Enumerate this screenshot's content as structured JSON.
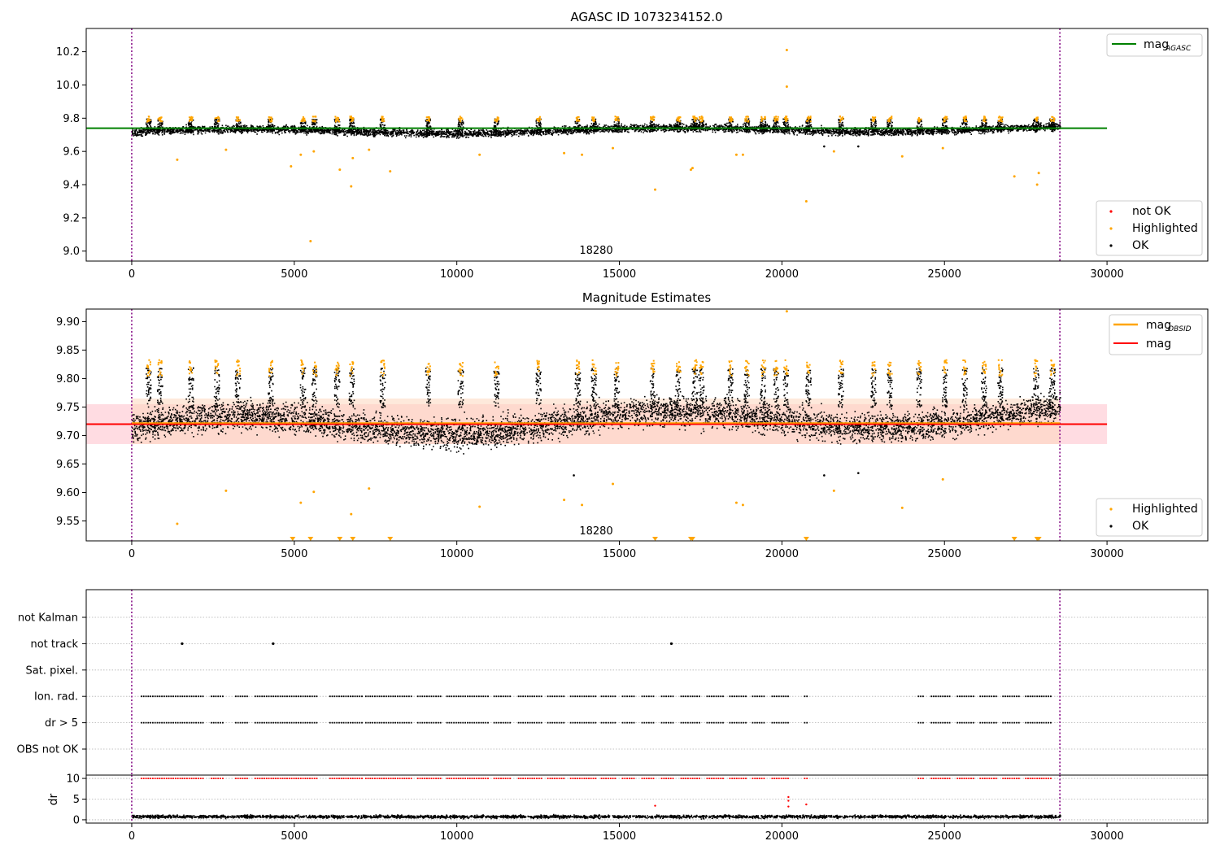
{
  "chart_data": [
    {
      "type": "scatter",
      "title": "AGASC ID 1073234152.0",
      "xlim": [
        -1400,
        33100
      ],
      "ylim": [
        8.94,
        10.34
      ],
      "x_ticks": [
        0,
        5000,
        10000,
        15000,
        20000,
        25000,
        30000
      ],
      "y_ticks": [
        9.0,
        9.2,
        9.4,
        9.6,
        9.8,
        10.0,
        10.2
      ],
      "grid": false,
      "vlines": [
        0,
        28550
      ],
      "annotation": {
        "text": "18280",
        "x": 14250,
        "y": 8.97
      },
      "lines": [
        {
          "name": "mag_AGASC",
          "color": "#008000",
          "y": 9.74,
          "x_range": [
            -1400,
            30000
          ]
        }
      ],
      "band": {
        "center": 9.72,
        "half_width": 0.04,
        "x_range": [
          0,
          28550
        ],
        "amplitude": 0.03
      },
      "clusters": {
        "color": "#ffa500",
        "positions": [
          500,
          850,
          1800,
          2600,
          3250,
          4250,
          5250,
          5600,
          6300,
          6750,
          7700,
          9100,
          10100,
          11200,
          12500,
          13700,
          14200,
          14900,
          16000,
          16800,
          17300,
          17500,
          18400,
          18900,
          19400,
          19800,
          20100,
          20800,
          21800,
          22800,
          23300,
          24200,
          25000,
          25600,
          26200,
          26700,
          27800,
          28300
        ],
        "amplitude": 0.05
      },
      "highlighted_outliers": [
        [
          1400,
          9.55
        ],
        [
          2900,
          9.61
        ],
        [
          4900,
          9.51
        ],
        [
          5200,
          9.58
        ],
        [
          5500,
          9.06
        ],
        [
          5600,
          9.6
        ],
        [
          6400,
          9.49
        ],
        [
          6750,
          9.39
        ],
        [
          6800,
          9.56
        ],
        [
          7300,
          9.61
        ],
        [
          7950,
          9.48
        ],
        [
          10700,
          9.58
        ],
        [
          13300,
          9.59
        ],
        [
          13850,
          9.58
        ],
        [
          14800,
          9.62
        ],
        [
          16100,
          9.37
        ],
        [
          17200,
          9.49
        ],
        [
          17250,
          9.5
        ],
        [
          18600,
          9.58
        ],
        [
          18800,
          9.58
        ],
        [
          20150,
          10.21
        ],
        [
          20150,
          9.99
        ],
        [
          20750,
          9.3
        ],
        [
          21600,
          9.6
        ],
        [
          23700,
          9.57
        ],
        [
          24950,
          9.62
        ],
        [
          27150,
          9.45
        ],
        [
          27850,
          9.4
        ],
        [
          27900,
          9.47
        ]
      ],
      "ok_outliers": [
        [
          21300,
          9.63
        ],
        [
          22350,
          9.63
        ]
      ],
      "legends": [
        {
          "placement": "upper right",
          "entries": [
            {
              "label": "mag",
              "sub": "AGASC",
              "kind": "line",
              "color": "#008000"
            }
          ]
        },
        {
          "placement": "lower right",
          "entries": [
            {
              "label": "not OK",
              "kind": "dot",
              "color": "#ff0000"
            },
            {
              "label": "Highlighted",
              "kind": "dot",
              "color": "#ffa500"
            },
            {
              "label": "OK",
              "kind": "dot",
              "color": "#000000"
            }
          ]
        }
      ]
    },
    {
      "type": "scatter",
      "title": "Magnitude Estimates",
      "xlim": [
        -1400,
        33100
      ],
      "ylim": [
        9.515,
        9.922
      ],
      "x_ticks": [
        0,
        5000,
        10000,
        15000,
        20000,
        25000,
        30000
      ],
      "y_ticks": [
        9.55,
        9.6,
        9.65,
        9.7,
        9.75,
        9.8,
        9.85,
        9.9
      ],
      "grid": false,
      "vlines": [
        0,
        28550
      ],
      "annotation": {
        "text": "18280",
        "x": 14250,
        "y": 9.529
      },
      "shaded_bands": [
        {
          "y": [
            9.685,
            9.755
          ],
          "x_range": [
            -1400,
            30000
          ],
          "color": "#ffc0cb"
        },
        {
          "y": [
            9.685,
            9.765
          ],
          "x_range": [
            0,
            28550
          ],
          "color": "#fdd7bd"
        }
      ],
      "lines": [
        {
          "name": "mag_OBSID",
          "color": "#ffa500",
          "y": 9.722,
          "x_range": [
            0,
            28550
          ]
        },
        {
          "name": "mag",
          "color": "#ff0000",
          "y": 9.72,
          "x_range": [
            -1400,
            30000
          ]
        }
      ],
      "band": {
        "center": 9.715,
        "half_width": 0.045,
        "x_range": [
          0,
          28550
        ],
        "amplitude": 0.035
      },
      "clusters": {
        "color": "#ffa500",
        "positions": [
          500,
          850,
          1800,
          2600,
          3250,
          4250,
          5250,
          5600,
          6300,
          6750,
          7700,
          9100,
          10100,
          11200,
          12500,
          13700,
          14200,
          14900,
          16000,
          16800,
          17300,
          17500,
          18400,
          18900,
          19400,
          19800,
          20100,
          20800,
          21800,
          22800,
          23300,
          24200,
          25000,
          25600,
          26200,
          26700,
          27800,
          28300
        ],
        "amplitude": 0.05
      },
      "highlighted_outliers": [
        [
          1400,
          9.545
        ],
        [
          2900,
          9.603
        ],
        [
          5200,
          9.582
        ],
        [
          5600,
          9.601
        ],
        [
          6750,
          9.562
        ],
        [
          7300,
          9.607
        ],
        [
          10700,
          9.575
        ],
        [
          13300,
          9.587
        ],
        [
          13850,
          9.578
        ],
        [
          14800,
          9.615
        ],
        [
          18600,
          9.582
        ],
        [
          18800,
          9.578
        ],
        [
          20150,
          9.918
        ],
        [
          21600,
          9.603
        ],
        [
          23700,
          9.573
        ],
        [
          24950,
          9.623
        ]
      ],
      "ok_outliers": [
        [
          13600,
          9.63
        ],
        [
          21300,
          9.63
        ],
        [
          22350,
          9.634
        ]
      ],
      "clipped_markers": [
        4950,
        5500,
        6400,
        6800,
        7950,
        16100,
        17200,
        17250,
        20750,
        27150,
        27850,
        27900
      ],
      "legends": [
        {
          "placement": "upper right",
          "entries": [
            {
              "label": "mag",
              "sub": "OBSID",
              "kind": "line",
              "color": "#ffa500"
            },
            {
              "label": "mag",
              "kind": "line",
              "color": "#ff0000"
            }
          ]
        },
        {
          "placement": "lower right",
          "entries": [
            {
              "label": "Highlighted",
              "kind": "dot",
              "color": "#ffa500"
            },
            {
              "label": "OK",
              "kind": "dot",
              "color": "#000000"
            }
          ]
        }
      ]
    },
    {
      "type": "scatter",
      "title": "",
      "xlim": [
        -1400,
        33100
      ],
      "categories": [
        "not Kalman",
        "not track",
        "Sat. pixel.",
        "Ion. rad.",
        "dr > 5",
        "OBS not OK"
      ],
      "grid": true,
      "vlines": [
        0,
        28550
      ],
      "not_track_points": [
        1550,
        4350,
        16600
      ],
      "flag_segments": [
        [
          300,
          2200
        ],
        [
          2450,
          2850
        ],
        [
          3200,
          3550
        ],
        [
          3800,
          5700
        ],
        [
          6100,
          7100
        ],
        [
          7200,
          8600
        ],
        [
          8800,
          9500
        ],
        [
          9700,
          11000
        ],
        [
          11150,
          11700
        ],
        [
          11900,
          12600
        ],
        [
          12800,
          13350
        ],
        [
          13500,
          14300
        ],
        [
          14450,
          14900
        ],
        [
          15100,
          15500
        ],
        [
          15700,
          16100
        ],
        [
          16300,
          16700
        ],
        [
          16900,
          17500
        ],
        [
          17700,
          18200
        ],
        [
          18400,
          18900
        ],
        [
          19100,
          19500
        ],
        [
          19700,
          20200
        ],
        [
          20700,
          20800
        ],
        [
          24200,
          24400
        ],
        [
          24600,
          25200
        ],
        [
          25400,
          25900
        ],
        [
          26100,
          26600
        ],
        [
          26800,
          27300
        ],
        [
          27500,
          28300
        ]
      ]
    },
    {
      "type": "scatter",
      "title": "",
      "ylabel": "dr",
      "xlim": [
        -1400,
        33100
      ],
      "ylim": [
        -0.8,
        10.8
      ],
      "x_ticks": [
        0,
        5000,
        10000,
        15000,
        20000,
        25000,
        30000
      ],
      "y_ticks": [
        0,
        5,
        10
      ],
      "grid": true,
      "vlines": [
        0,
        28550
      ],
      "band": {
        "center": 0.9,
        "half_width": 0.6,
        "x_range": [
          0,
          28550
        ]
      },
      "red_points_at_limit": 10,
      "red_outliers": [
        [
          16100,
          3.4
        ],
        [
          20200,
          5.5
        ],
        [
          20200,
          4.6
        ],
        [
          20200,
          3.2
        ],
        [
          20750,
          3.7
        ]
      ]
    }
  ]
}
